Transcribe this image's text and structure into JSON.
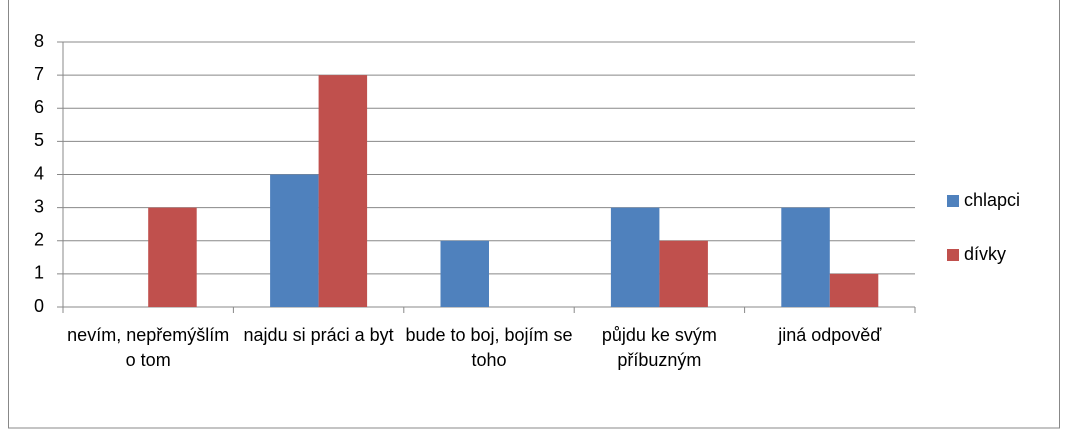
{
  "chart_data": {
    "type": "bar",
    "categories": [
      "nevím, nepřemýšlím o tom",
      "najdu si práci a byt",
      "bude to boj, bojím se toho",
      "půjdu ke svým příbuzným",
      "jiná odpověď"
    ],
    "series": [
      {
        "name": "chlapci",
        "color": "#4f81bd",
        "values": [
          0,
          4,
          2,
          3,
          3
        ]
      },
      {
        "name": "dívky",
        "color": "#c0504d",
        "values": [
          3,
          7,
          0,
          2,
          1
        ]
      }
    ],
    "ylim": [
      0,
      8
    ],
    "yticks": [
      0,
      1,
      2,
      3,
      4,
      5,
      6,
      7,
      8
    ],
    "grid": true,
    "legend": "right"
  }
}
